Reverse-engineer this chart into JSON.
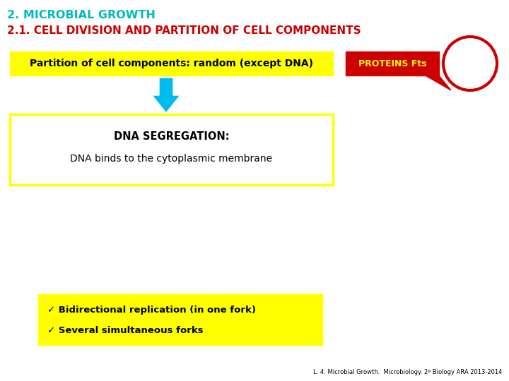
{
  "title1": "2. MICROBIAL GROWTH",
  "title2": "2.1. CELL DIVISION AND PARTITION OF CELL COMPONENTS",
  "title1_color": "#00BBBB",
  "title2_color": "#CC0000",
  "box1_text": "Partition of cell components: random (except DNA)",
  "box1_bg": "#FFFF00",
  "proteins_label": "PROTEINS Fts",
  "proteins_bg": "#CC0000",
  "proteins_text_color": "#FFFF00",
  "dna_seg_title": "DNA SEGREGATION:",
  "dna_seg_body": "DNA binds to the cytoplasmic membrane",
  "dna_box_bg": "#FFFFFF",
  "dna_box_border": "#FFFF00",
  "bullet1": "✓ Bidirectional replication (in one fork)",
  "bullet2": "✓ Several simultaneous forks",
  "bullet_bg": "#FFFF00",
  "footer": "L. 4: Microbial Growth.  Microbiology. 2º Biology ARA 2013-2014",
  "arrow_color": "#00BBEE",
  "circle_color": "#CC0000",
  "bg_color": "#FFFFFF",
  "fig_width": 7.2,
  "fig_height": 5.4,
  "dpi": 100
}
